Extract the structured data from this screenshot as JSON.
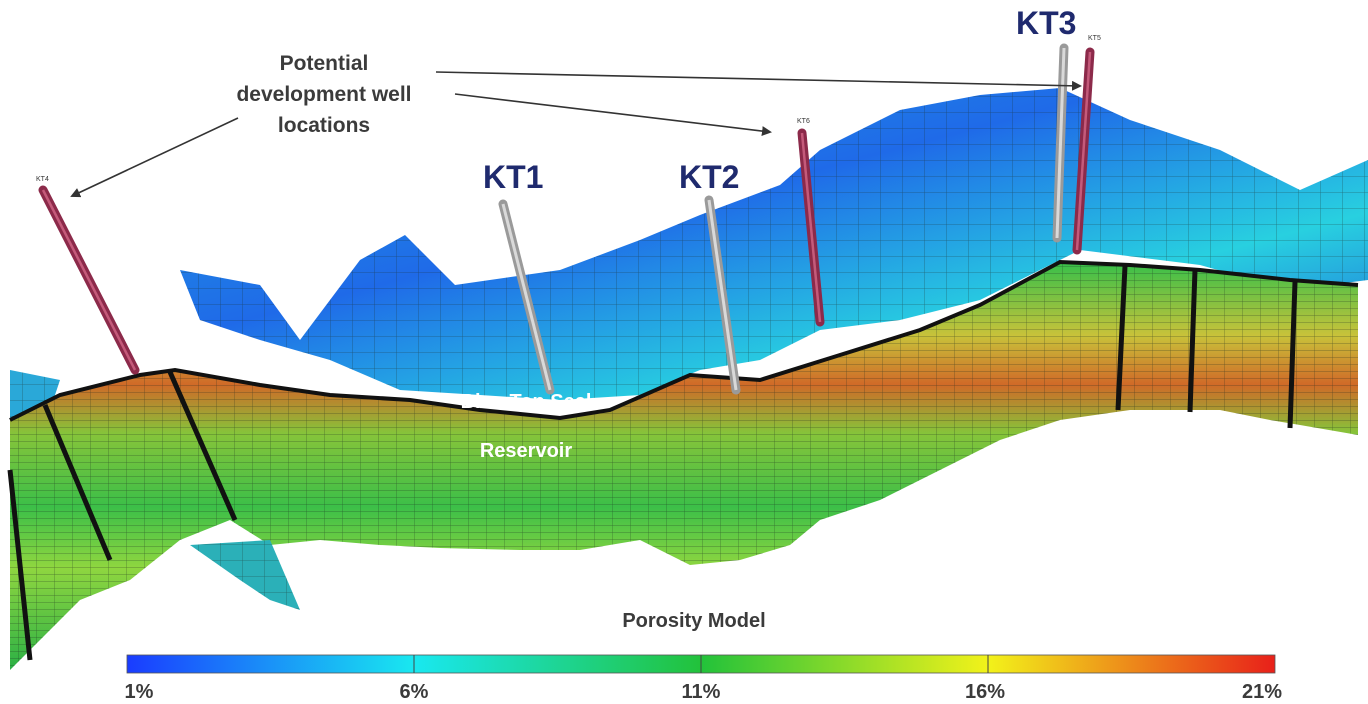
{
  "annotation": {
    "line1": "Potential",
    "line2": "development well",
    "line3": "locations"
  },
  "wells": {
    "existing": [
      {
        "id": "kt1",
        "label": "KT1"
      },
      {
        "id": "kt2",
        "label": "KT2"
      },
      {
        "id": "kt3",
        "label": "KT3"
      }
    ],
    "potential": [
      {
        "id": "kt4",
        "label": "KT4"
      },
      {
        "id": "kt5",
        "label": "KT5"
      },
      {
        "id": "kt6",
        "label": "KT6"
      }
    ]
  },
  "zones": {
    "seal": "Blue Top Seal",
    "reservoir": "Reservoir"
  },
  "legend": {
    "title": "Porosity Model",
    "ticks": [
      "1%",
      "6%",
      "11%",
      "16%",
      "21%"
    ],
    "colors": [
      "#1a3cff",
      "#19e8f0",
      "#22c23a",
      "#f2f21a",
      "#e8201a"
    ]
  },
  "colors": {
    "existing_well": "#a9a9a9",
    "potential_well": "#8c2a4a",
    "arrow": "#333333"
  }
}
